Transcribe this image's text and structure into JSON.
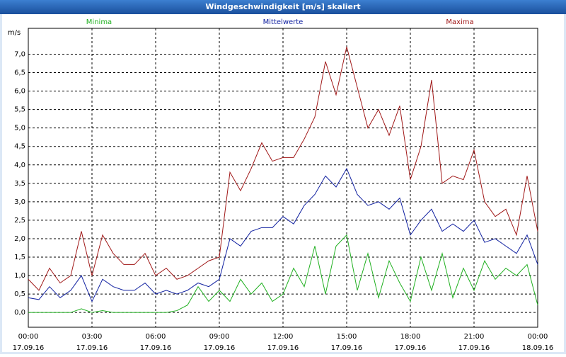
{
  "chart_data": {
    "type": "line",
    "title": "Windgeschwindigkeit [m/s] skaliert",
    "y_label": "m/s",
    "x": [
      0,
      0.5,
      1,
      1.5,
      2,
      2.5,
      3,
      3.5,
      4,
      4.5,
      5,
      5.5,
      6,
      6.5,
      7,
      7.5,
      8,
      8.5,
      9,
      9.5,
      10,
      10.5,
      11,
      11.5,
      12,
      12.5,
      13,
      13.5,
      14,
      14.5,
      15,
      15.5,
      16,
      16.5,
      17,
      17.5,
      18,
      18.5,
      19,
      19.5,
      20,
      20.5,
      21,
      21.5,
      22,
      22.5,
      23,
      23.5,
      24
    ],
    "series": [
      {
        "name": "Minima",
        "color": "#20b020",
        "values": [
          0,
          0,
          0,
          0,
          0,
          0.1,
          0,
          0.05,
          0,
          0,
          0,
          0,
          0,
          0,
          0.05,
          0.2,
          0.7,
          0.3,
          0.6,
          0.3,
          0.9,
          0.5,
          0.8,
          0.3,
          0.5,
          1.2,
          0.7,
          1.8,
          0.5,
          1.8,
          2.1,
          0.6,
          1.6,
          0.4,
          1.4,
          0.8,
          0.3,
          1.5,
          0.6,
          1.6,
          0.4,
          1.2,
          0.6,
          1.4,
          0.9,
          1.2,
          1.0,
          1.3,
          0.2
        ]
      },
      {
        "name": "Mittelwerte",
        "color": "#1020a0",
        "values": [
          0.4,
          0.35,
          0.7,
          0.4,
          0.6,
          1.0,
          0.3,
          0.9,
          0.7,
          0.6,
          0.6,
          0.8,
          0.5,
          0.6,
          0.5,
          0.6,
          0.8,
          0.7,
          0.9,
          2.0,
          1.8,
          2.2,
          2.3,
          2.3,
          2.6,
          2.4,
          2.9,
          3.2,
          3.7,
          3.4,
          3.9,
          3.2,
          2.9,
          3.0,
          2.8,
          3.1,
          2.1,
          2.5,
          2.8,
          2.2,
          2.4,
          2.2,
          2.5,
          1.9,
          2.0,
          1.8,
          1.6,
          2.1,
          1.3
        ]
      },
      {
        "name": "Maxima",
        "color": "#a01818",
        "values": [
          0.9,
          0.6,
          1.2,
          0.8,
          1.0,
          2.2,
          1.0,
          2.1,
          1.6,
          1.3,
          1.3,
          1.6,
          1.0,
          1.2,
          0.9,
          1.0,
          1.2,
          1.4,
          1.5,
          3.8,
          3.3,
          3.9,
          4.6,
          4.1,
          4.2,
          4.2,
          4.7,
          5.3,
          6.8,
          5.9,
          7.2,
          6.1,
          5.0,
          5.5,
          4.8,
          5.6,
          3.6,
          4.5,
          6.3,
          3.5,
          3.7,
          3.6,
          4.4,
          3.0,
          2.6,
          2.8,
          2.1,
          3.7,
          2.2
        ]
      }
    ],
    "xlim": [
      0,
      24
    ],
    "xticks": [
      {
        "value": 0,
        "label": "00:00",
        "date": "17.09.16"
      },
      {
        "value": 3,
        "label": "03:00",
        "date": "17.09.16"
      },
      {
        "value": 6,
        "label": "06:00",
        "date": "17.09.16"
      },
      {
        "value": 9,
        "label": "09:00",
        "date": "17.09.16"
      },
      {
        "value": 12,
        "label": "12:00",
        "date": "17.09.16"
      },
      {
        "value": 15,
        "label": "15:00",
        "date": "17.09.16"
      },
      {
        "value": 18,
        "label": "18:00",
        "date": "17.09.16"
      },
      {
        "value": 21,
        "label": "21:00",
        "date": "17.09.16"
      },
      {
        "value": 24,
        "label": "00:00",
        "date": "18.09.16"
      }
    ],
    "ylim": [
      -0.4,
      7.7
    ],
    "yticks": [
      {
        "value": 0,
        "label": "0,0"
      },
      {
        "value": 0.5,
        "label": "0,5"
      },
      {
        "value": 1,
        "label": "1,0"
      },
      {
        "value": 1.5,
        "label": "1,5"
      },
      {
        "value": 2,
        "label": "2,0"
      },
      {
        "value": 2.5,
        "label": "2,5"
      },
      {
        "value": 3,
        "label": "3,0"
      },
      {
        "value": 3.5,
        "label": "3,5"
      },
      {
        "value": 4,
        "label": "4,0"
      },
      {
        "value": 4.5,
        "label": "4,5"
      },
      {
        "value": 5,
        "label": "5,0"
      },
      {
        "value": 5.5,
        "label": "5,5"
      },
      {
        "value": 6,
        "label": "6,0"
      },
      {
        "value": 6.5,
        "label": "6,5"
      },
      {
        "value": 7,
        "label": "7,0"
      }
    ],
    "grid": true
  }
}
